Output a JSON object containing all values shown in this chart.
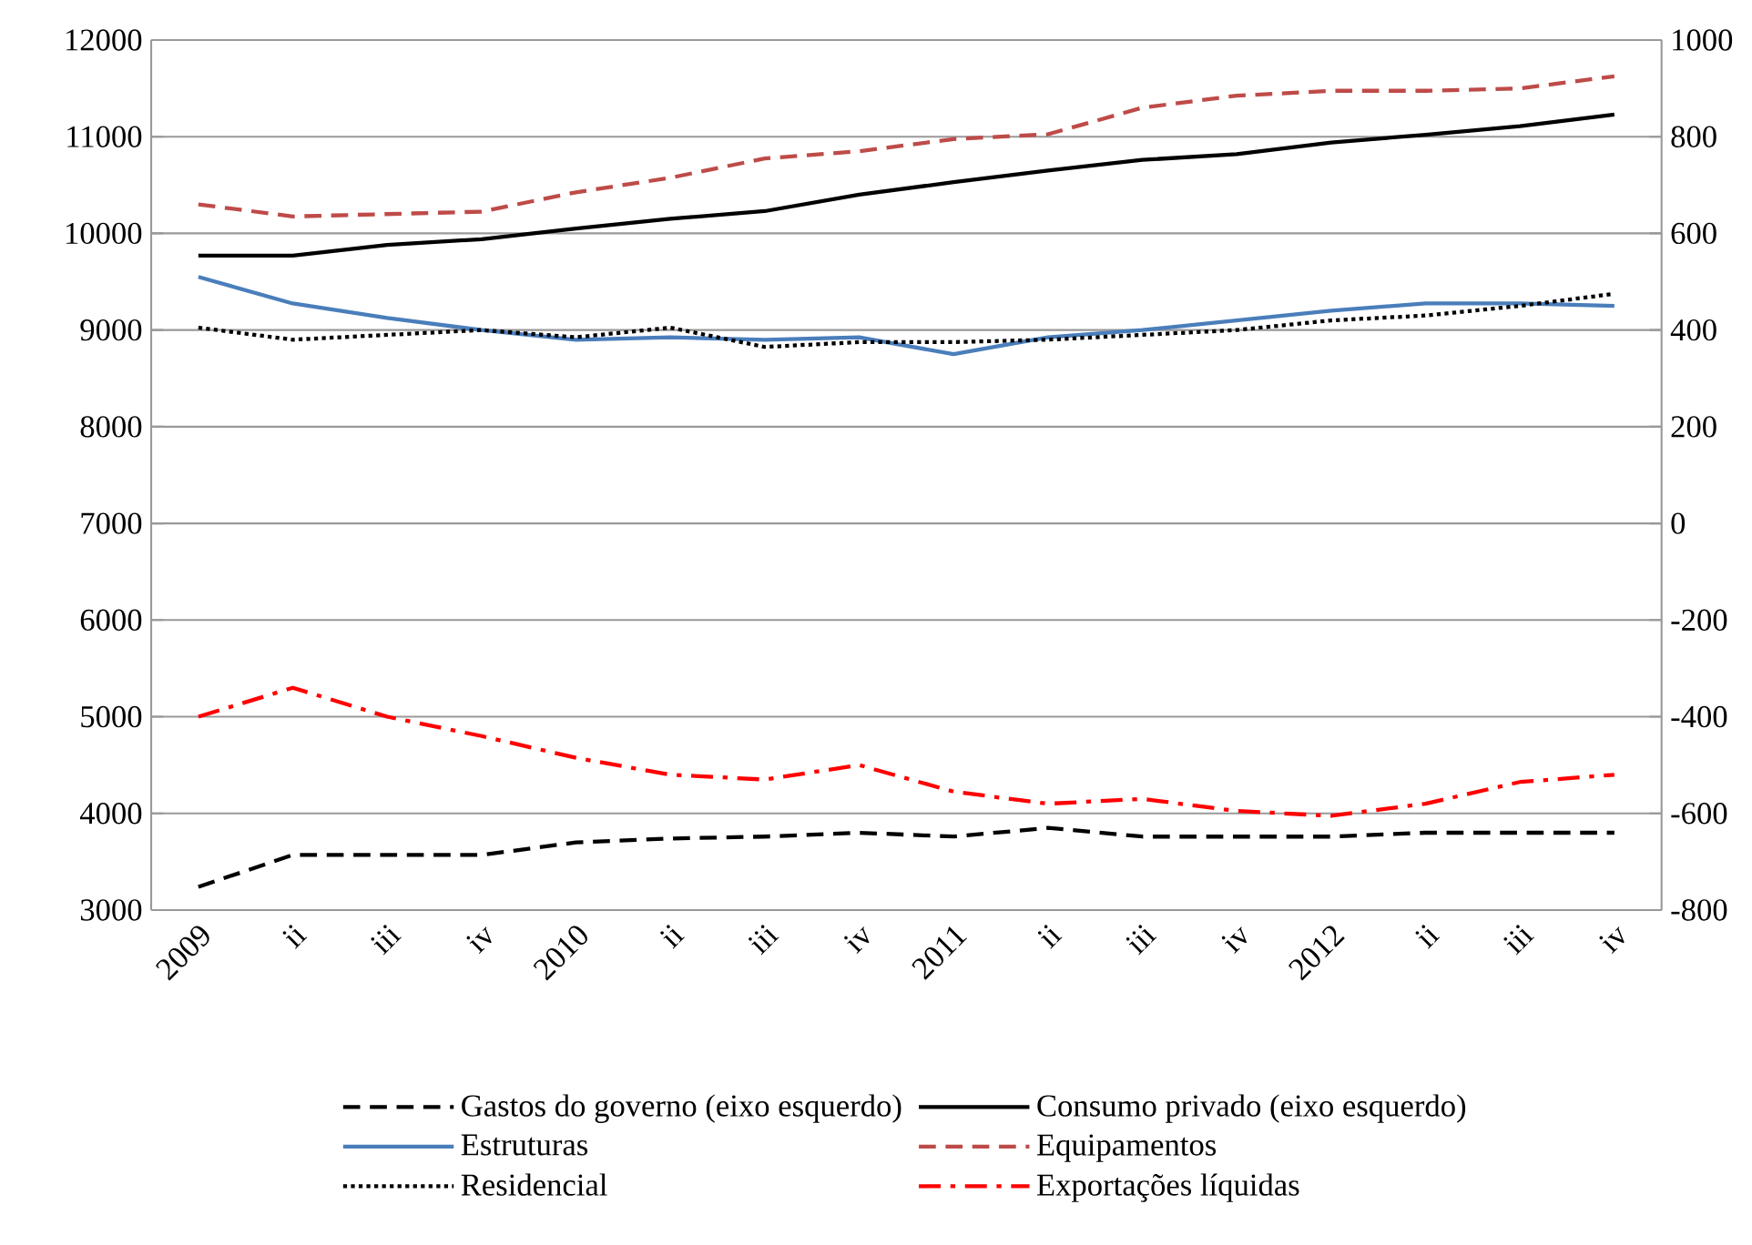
{
  "chart_data": {
    "type": "line",
    "categories": [
      "2009",
      "ii",
      "iii",
      "iv",
      "2010",
      "ii",
      "iii",
      "iv",
      "2011",
      "ii",
      "iii",
      "iv",
      "2012",
      "ii",
      "iii",
      "iv"
    ],
    "ylim": [
      3000,
      12000
    ],
    "yticks": [
      3000,
      4000,
      5000,
      6000,
      7000,
      8000,
      9000,
      10000,
      11000,
      12000
    ],
    "y2lim": [
      -800,
      1000
    ],
    "y2ticks": [
      -800,
      -600,
      -400,
      -200,
      0,
      200,
      400,
      600,
      800,
      1000
    ],
    "grid": "y",
    "legend": "bottom",
    "marker": "none",
    "series": [
      {
        "name": "Gastos do governo (eixo esquerdo)",
        "color": "#000000",
        "line_style": "dashed",
        "values": [
          3240,
          3570,
          3570,
          3570,
          3700,
          3740,
          3760,
          3800,
          3760,
          3850,
          3760,
          3760,
          3760,
          3800,
          3800,
          3800
        ]
      },
      {
        "name": "Consumo privado (eixo esquerdo)",
        "color": "#000000",
        "line_style": "solid",
        "values": [
          9770,
          9770,
          9880,
          9940,
          10050,
          10150,
          10230,
          10400,
          10530,
          10650,
          10760,
          10820,
          10940,
          11020,
          11110,
          11230
        ]
      },
      {
        "name": "Estruturas",
        "color": "#4a7ebb",
        "line_style": "solid",
        "axis": "y2",
        "values": [
          510,
          455,
          425,
          400,
          380,
          385,
          380,
          385,
          350,
          385,
          400,
          420,
          440,
          455,
          455,
          450
        ]
      },
      {
        "name": "Equipamentos",
        "color": "#be4b48",
        "line_style": "dashed",
        "axis": "y2",
        "values": [
          660,
          635,
          640,
          645,
          685,
          715,
          755,
          770,
          795,
          805,
          860,
          885,
          895,
          895,
          900,
          925
        ]
      },
      {
        "name": "Residencial",
        "color": "#000000",
        "line_style": "dotted",
        "axis": "y2",
        "values": [
          405,
          380,
          390,
          400,
          385,
          405,
          365,
          375,
          375,
          380,
          390,
          400,
          420,
          430,
          450,
          475
        ]
      },
      {
        "name": "Exportações líquidas",
        "color": "#ff0000",
        "line_style": "dashdot",
        "axis": "y2",
        "values": [
          -400,
          -340,
          -400,
          -440,
          -485,
          -520,
          -530,
          -500,
          -555,
          -580,
          -570,
          -595,
          -605,
          -580,
          -535,
          -520
        ]
      }
    ]
  }
}
